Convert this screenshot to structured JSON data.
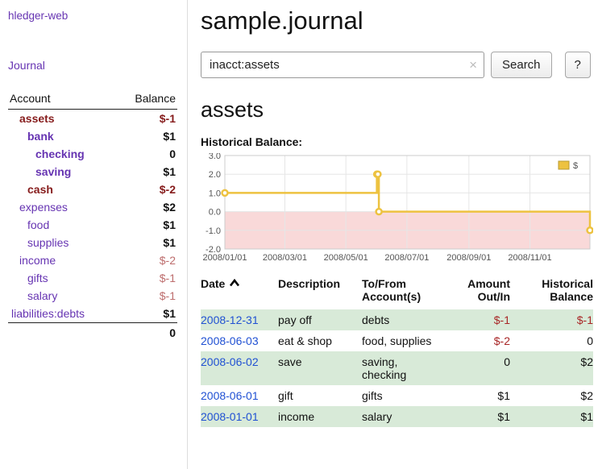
{
  "app": {
    "title": "hledger-web"
  },
  "sidebar": {
    "journal_link": "Journal",
    "accounts_header": {
      "account": "Account",
      "balance": "Balance"
    },
    "accounts": [
      {
        "name": "assets",
        "balance": "$-1",
        "indent": 1,
        "bold": true,
        "name_class": "neg",
        "balance_class": "neg"
      },
      {
        "name": "bank",
        "balance": "$1",
        "indent": 2,
        "bold": true,
        "name_class": "",
        "balance_class": ""
      },
      {
        "name": "checking",
        "balance": "0",
        "indent": 3,
        "bold": true,
        "name_class": "",
        "balance_class": ""
      },
      {
        "name": "saving",
        "balance": "$1",
        "indent": 3,
        "bold": true,
        "name_class": "",
        "balance_class": ""
      },
      {
        "name": "cash",
        "balance": "$-2",
        "indent": 2,
        "bold": true,
        "name_class": "neg",
        "balance_class": "neg"
      },
      {
        "name": "expenses",
        "balance": "$2",
        "indent": 1,
        "bold": false,
        "name_class": "",
        "balance_class": ""
      },
      {
        "name": "food",
        "balance": "$1",
        "indent": 2,
        "bold": false,
        "name_class": "",
        "balance_class": ""
      },
      {
        "name": "supplies",
        "balance": "$1",
        "indent": 2,
        "bold": false,
        "name_class": "",
        "balance_class": ""
      },
      {
        "name": "income",
        "balance": "$-2",
        "indent": 1,
        "bold": false,
        "name_class": "",
        "balance_class": "light-neg"
      },
      {
        "name": "gifts",
        "balance": "$-1",
        "indent": 2,
        "bold": false,
        "name_class": "",
        "balance_class": "light-neg"
      },
      {
        "name": "salary",
        "balance": "$-1",
        "indent": 2,
        "bold": false,
        "name_class": "",
        "balance_class": "light-neg"
      },
      {
        "name": "liabilities:debts",
        "balance": "$1",
        "indent": 0,
        "bold": false,
        "name_class": "",
        "balance_class": ""
      }
    ],
    "total": "0"
  },
  "header": {
    "title": "sample.journal"
  },
  "search": {
    "value": "inacct:assets",
    "clear_icon": "×",
    "button_label": "Search",
    "help_label": "?"
  },
  "main": {
    "account_title": "assets",
    "chart_title": "Historical Balance:"
  },
  "chart_data": {
    "type": "line",
    "step": true,
    "title": "Historical Balance:",
    "legend": {
      "label": "$",
      "position": "top-right"
    },
    "ylim": [
      -2,
      3
    ],
    "yticks": [
      3,
      2,
      1,
      0,
      -1,
      -2
    ],
    "xticks": [
      "2008/01/01",
      "2008/03/01",
      "2008/05/01",
      "2008/07/01",
      "2008/09/01",
      "2008/11/01"
    ],
    "x_range": [
      "2008-01-01",
      "2008-12-31"
    ],
    "series": [
      {
        "name": "$",
        "points": [
          {
            "date": "2008-01-01",
            "value": 1
          },
          {
            "date": "2008-06-01",
            "value": 2
          },
          {
            "date": "2008-06-02",
            "value": 2
          },
          {
            "date": "2008-06-03",
            "value": 0
          },
          {
            "date": "2008-12-31",
            "value": -1
          }
        ]
      }
    ]
  },
  "table": {
    "headers": [
      {
        "label": "Date",
        "align": "left",
        "sort": "asc"
      },
      {
        "label": "Description",
        "align": "left"
      },
      {
        "label": "To/From\nAccount(s)",
        "align": "left"
      },
      {
        "label": "Amount\nOut/In",
        "align": "right"
      },
      {
        "label": "Historical\nBalance",
        "align": "right"
      }
    ],
    "rows": [
      {
        "date": "2008-12-31",
        "description": "pay off",
        "accounts": "debts",
        "amount": "$-1",
        "amount_neg": true,
        "balance": "$-1",
        "balance_neg": true,
        "shaded": true
      },
      {
        "date": "2008-06-03",
        "description": "eat & shop",
        "accounts": "food, supplies",
        "amount": "$-2",
        "amount_neg": true,
        "balance": "0",
        "balance_neg": false,
        "shaded": false
      },
      {
        "date": "2008-06-02",
        "description": "save",
        "accounts": "saving, checking",
        "amount": "0",
        "amount_neg": false,
        "balance": "$2",
        "balance_neg": false,
        "shaded": true
      },
      {
        "date": "2008-06-01",
        "description": "gift",
        "accounts": "gifts",
        "amount": "$1",
        "amount_neg": false,
        "balance": "$2",
        "balance_neg": false,
        "shaded": false
      },
      {
        "date": "2008-01-01",
        "description": "income",
        "accounts": "salary",
        "amount": "$1",
        "amount_neg": false,
        "balance": "$1",
        "balance_neg": false,
        "shaded": true
      }
    ]
  },
  "colors": {
    "link_purple": "#6634b2",
    "date_link_blue": "#2051d3",
    "negative_strong": "#861c1c",
    "negative_light": "#bd6d6d",
    "negative_table": "#a82626",
    "row_shade_green": "#d8ead8",
    "chart_line": "#edc240",
    "chart_line_dark": "#b89a30",
    "chart_negative_region": "#f9d9d9",
    "chart_grid": "#e6e6e6",
    "chart_border": "#cccccc",
    "chart_tick_text": "#545454"
  }
}
